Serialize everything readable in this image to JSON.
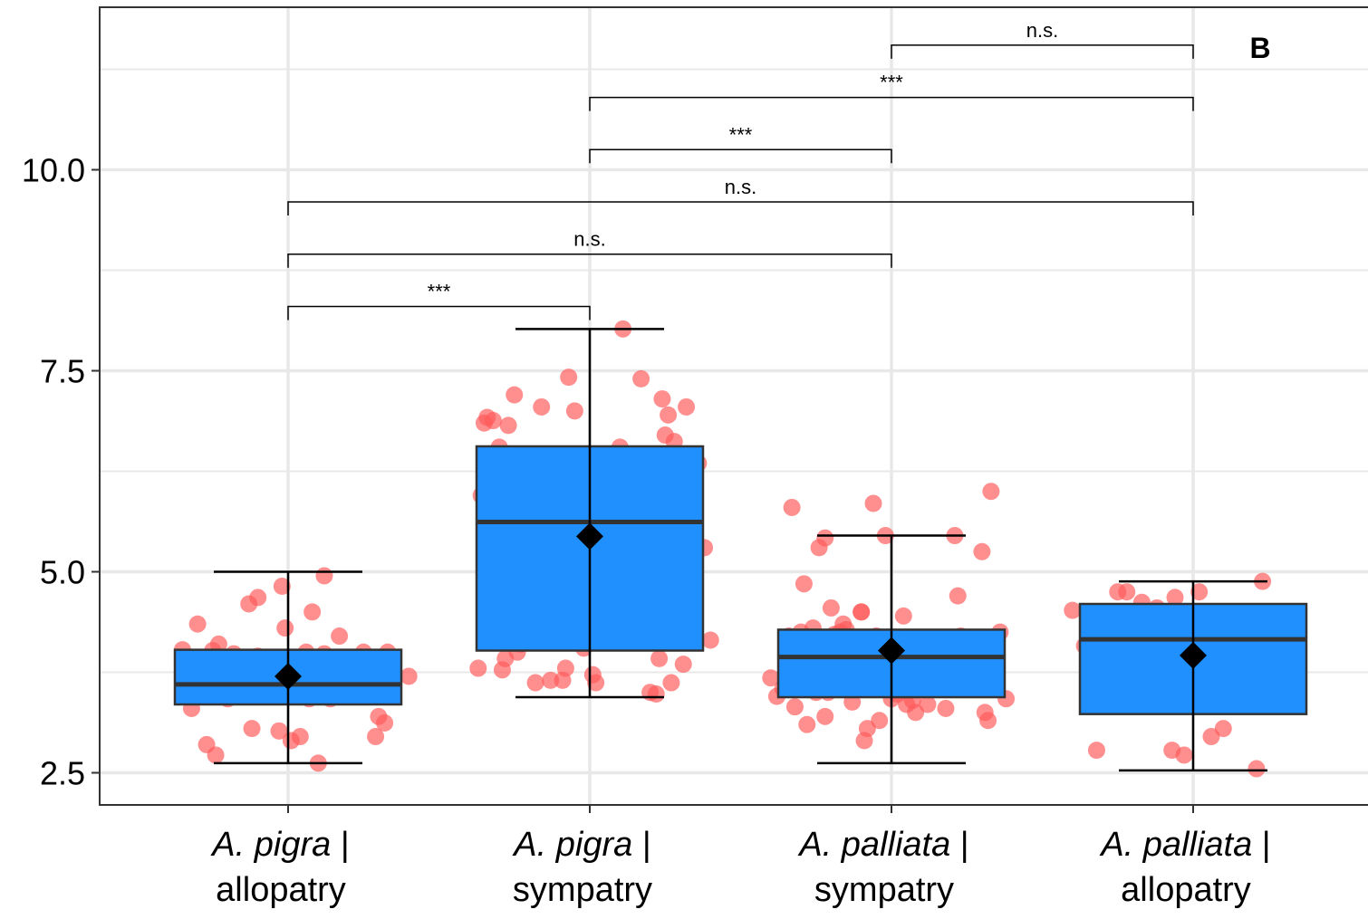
{
  "chart_data": {
    "type": "box",
    "panel_label": "B",
    "ylim": [
      2.0,
      12.0
    ],
    "y_ticks": [
      {
        "value": 2.5,
        "label": "2.5"
      },
      {
        "value": 5.0,
        "label": "5.0"
      },
      {
        "value": 7.5,
        "label": "7.5"
      },
      {
        "value": 10.0,
        "label": "10.0"
      }
    ],
    "grid": true,
    "categories": [
      {
        "species": "A. pigra",
        "sep": " |",
        "range": "allopatry"
      },
      {
        "species": "A. pigra",
        "sep": " |",
        "range": "sympatry"
      },
      {
        "species": "A. palliata",
        "sep": " |",
        "range": "sympatry"
      },
      {
        "species": "A. palliata",
        "sep": " |",
        "range": "allopatry"
      }
    ],
    "boxes": [
      {
        "whisker_low": 2.62,
        "q1": 3.35,
        "median": 3.6,
        "q3": 4.03,
        "whisker_high": 5.0,
        "mean": 3.7
      },
      {
        "whisker_low": 3.44,
        "q1": 4.02,
        "median": 5.62,
        "q3": 6.56,
        "whisker_high": 8.02,
        "mean": 5.44
      },
      {
        "whisker_low": 2.62,
        "q1": 3.44,
        "median": 3.94,
        "q3": 4.28,
        "whisker_high": 5.45,
        "mean": 4.02
      },
      {
        "whisker_low": 2.53,
        "q1": 3.23,
        "median": 4.16,
        "q3": 4.6,
        "whisker_high": 4.88,
        "mean": 3.96
      }
    ],
    "points": [
      [
        [
          -0.35,
          4.03
        ],
        [
          -0.34,
          3.48
        ],
        [
          -0.32,
          3.3
        ],
        [
          -0.3,
          4.35
        ],
        [
          -0.28,
          3.8
        ],
        [
          -0.27,
          2.85
        ],
        [
          -0.25,
          4.02
        ],
        [
          -0.24,
          2.72
        ],
        [
          -0.23,
          4.1
        ],
        [
          -0.2,
          3.42
        ],
        [
          -0.19,
          3.6
        ],
        [
          -0.18,
          3.98
        ],
        [
          -0.16,
          3.45
        ],
        [
          -0.15,
          3.52
        ],
        [
          -0.13,
          4.6
        ],
        [
          -0.12,
          3.05
        ],
        [
          -0.1,
          4.68
        ],
        [
          -0.1,
          3.95
        ],
        [
          -0.08,
          3.57
        ],
        [
          -0.06,
          3.48
        ],
        [
          -0.03,
          3.02
        ],
        [
          -0.02,
          4.82
        ],
        [
          -0.01,
          4.3
        ],
        [
          0.01,
          2.9
        ],
        [
          0.02,
          3.78
        ],
        [
          0.03,
          3.88
        ],
        [
          0.04,
          2.95
        ],
        [
          0.05,
          3.55
        ],
        [
          0.06,
          4.0
        ],
        [
          0.07,
          3.42
        ],
        [
          0.08,
          4.5
        ],
        [
          0.09,
          3.9
        ],
        [
          0.1,
          2.62
        ],
        [
          0.12,
          4.95
        ],
        [
          0.12,
          3.98
        ],
        [
          0.14,
          3.42
        ],
        [
          0.16,
          3.55
        ],
        [
          0.17,
          4.2
        ],
        [
          0.18,
          3.5
        ],
        [
          0.2,
          3.62
        ],
        [
          0.23,
          3.55
        ],
        [
          0.25,
          4.0
        ],
        [
          0.27,
          3.5
        ],
        [
          0.28,
          3.85
        ],
        [
          0.29,
          2.95
        ],
        [
          0.3,
          3.2
        ],
        [
          0.3,
          3.5
        ],
        [
          0.32,
          3.12
        ],
        [
          0.33,
          4.0
        ],
        [
          0.4,
          3.7
        ]
      ],
      [
        [
          -0.37,
          3.8
        ],
        [
          -0.36,
          5.95
        ],
        [
          -0.35,
          6.85
        ],
        [
          -0.34,
          6.92
        ],
        [
          -0.33,
          6.45
        ],
        [
          -0.32,
          6.88
        ],
        [
          -0.31,
          5.6
        ],
        [
          -0.3,
          6.55
        ],
        [
          -0.29,
          3.78
        ],
        [
          -0.28,
          3.92
        ],
        [
          -0.27,
          6.82
        ],
        [
          -0.26,
          5.55
        ],
        [
          -0.25,
          7.2
        ],
        [
          -0.24,
          4.0
        ],
        [
          -0.23,
          4.1
        ],
        [
          -0.22,
          5.65
        ],
        [
          -0.2,
          5.85
        ],
        [
          -0.19,
          5.12
        ],
        [
          -0.18,
          3.62
        ],
        [
          -0.17,
          5.7
        ],
        [
          -0.16,
          7.05
        ],
        [
          -0.15,
          6.18
        ],
        [
          -0.14,
          5.95
        ],
        [
          -0.13,
          3.65
        ],
        [
          -0.12,
          5.95
        ],
        [
          -0.12,
          4.38
        ],
        [
          -0.1,
          6.3
        ],
        [
          -0.09,
          4.8
        ],
        [
          -0.09,
          3.65
        ],
        [
          -0.08,
          3.8
        ],
        [
          -0.07,
          7.42
        ],
        [
          -0.05,
          7.0
        ],
        [
          -0.03,
          5.1
        ],
        [
          -0.02,
          4.05
        ],
        [
          -0.01,
          6.3
        ],
        [
          0.01,
          3.72
        ],
        [
          0.02,
          3.62
        ],
        [
          0.05,
          5.12
        ],
        [
          0.08,
          5.55
        ],
        [
          0.1,
          6.55
        ],
        [
          0.12,
          6.25
        ],
        [
          0.14,
          6.35
        ],
        [
          0.15,
          4.65
        ],
        [
          0.17,
          6.4
        ],
        [
          0.2,
          3.5
        ],
        [
          0.22,
          3.48
        ],
        [
          0.23,
          3.92
        ],
        [
          0.24,
          7.15
        ],
        [
          0.25,
          6.7
        ],
        [
          0.26,
          6.95
        ],
        [
          0.27,
          3.62
        ],
        [
          0.28,
          6.62
        ],
        [
          0.3,
          5.35
        ],
        [
          0.31,
          3.85
        ],
        [
          0.32,
          7.05
        ],
        [
          0.34,
          5.2
        ],
        [
          0.36,
          6.35
        ],
        [
          0.38,
          5.3
        ],
        [
          0.4,
          4.15
        ],
        [
          0.11,
          8.02
        ],
        [
          0.17,
          7.4
        ]
      ],
      [
        [
          -0.4,
          3.68
        ],
        [
          -0.38,
          3.45
        ],
        [
          -0.36,
          3.55
        ],
        [
          -0.34,
          4.2
        ],
        [
          -0.33,
          5.8
        ],
        [
          -0.32,
          3.32
        ],
        [
          -0.3,
          4.25
        ],
        [
          -0.29,
          4.85
        ],
        [
          -0.28,
          3.1
        ],
        [
          -0.27,
          3.62
        ],
        [
          -0.26,
          4.3
        ],
        [
          -0.25,
          3.5
        ],
        [
          -0.24,
          5.3
        ],
        [
          -0.23,
          4.1
        ],
        [
          -0.22,
          5.42
        ],
        [
          -0.22,
          3.2
        ],
        [
          -0.21,
          3.5
        ],
        [
          -0.2,
          4.55
        ],
        [
          -0.2,
          3.95
        ],
        [
          -0.19,
          4.22
        ],
        [
          -0.18,
          3.62
        ],
        [
          -0.17,
          4.25
        ],
        [
          -0.16,
          4.35
        ],
        [
          -0.15,
          4.28
        ],
        [
          -0.14,
          4.0
        ],
        [
          -0.13,
          3.38
        ],
        [
          -0.12,
          3.95
        ],
        [
          -0.11,
          4.12
        ],
        [
          -0.1,
          4.5
        ],
        [
          -0.1,
          4.5
        ],
        [
          -0.09,
          2.9
        ],
        [
          -0.08,
          3.05
        ],
        [
          -0.06,
          5.85
        ],
        [
          -0.05,
          4.2
        ],
        [
          -0.04,
          3.15
        ],
        [
          -0.03,
          4.15
        ],
        [
          -0.02,
          5.45
        ],
        [
          -0.01,
          3.72
        ],
        [
          0.0,
          3.42
        ],
        [
          0.02,
          3.48
        ],
        [
          0.03,
          3.62
        ],
        [
          0.04,
          4.45
        ],
        [
          0.05,
          3.35
        ],
        [
          0.06,
          3.55
        ],
        [
          0.07,
          3.4
        ],
        [
          0.08,
          3.25
        ],
        [
          0.1,
          3.8
        ],
        [
          0.11,
          3.72
        ],
        [
          0.12,
          3.35
        ],
        [
          0.13,
          4.08
        ],
        [
          0.15,
          3.62
        ],
        [
          0.17,
          4.02
        ],
        [
          0.18,
          3.3
        ],
        [
          0.2,
          3.7
        ],
        [
          0.21,
          5.45
        ],
        [
          0.22,
          4.7
        ],
        [
          0.23,
          4.2
        ],
        [
          0.25,
          3.8
        ],
        [
          0.28,
          3.95
        ],
        [
          0.3,
          5.25
        ],
        [
          0.31,
          3.25
        ],
        [
          0.32,
          3.15
        ],
        [
          0.33,
          6.0
        ],
        [
          0.34,
          3.55
        ],
        [
          0.36,
          4.25
        ],
        [
          0.38,
          3.42
        ]
      ],
      [
        [
          -0.4,
          4.52
        ],
        [
          -0.36,
          4.08
        ],
        [
          -0.32,
          2.78
        ],
        [
          -0.25,
          4.75
        ],
        [
          -0.22,
          4.75
        ],
        [
          -0.2,
          4.2
        ],
        [
          -0.17,
          4.62
        ],
        [
          -0.15,
          3.68
        ],
        [
          -0.13,
          4.5
        ],
        [
          -0.12,
          4.55
        ],
        [
          -0.1,
          4.08
        ],
        [
          -0.09,
          4.25
        ],
        [
          -0.07,
          2.78
        ],
        [
          -0.06,
          4.68
        ],
        [
          -0.03,
          2.72
        ],
        [
          0.02,
          4.75
        ],
        [
          0.06,
          2.95
        ],
        [
          0.1,
          3.05
        ],
        [
          0.15,
          3.95
        ],
        [
          0.18,
          4.45
        ],
        [
          0.21,
          2.55
        ],
        [
          0.23,
          4.88
        ],
        [
          0.2,
          4.1
        ]
      ]
    ],
    "comparisons": [
      {
        "from": 0,
        "to": 1,
        "y": 8.3,
        "label": "***"
      },
      {
        "from": 0,
        "to": 2,
        "y": 8.95,
        "label": "n.s."
      },
      {
        "from": 0,
        "to": 3,
        "y": 9.6,
        "label": "n.s."
      },
      {
        "from": 1,
        "to": 2,
        "y": 10.25,
        "label": "***"
      },
      {
        "from": 1,
        "to": 3,
        "y": 10.9,
        "label": "***"
      },
      {
        "from": 2,
        "to": 3,
        "y": 11.55,
        "label": "n.s."
      }
    ],
    "colors": {
      "box_fill": "#2190FF",
      "point": "#FF5A5A",
      "grid": "#E8E8E8",
      "panel_border": "#333333"
    }
  }
}
